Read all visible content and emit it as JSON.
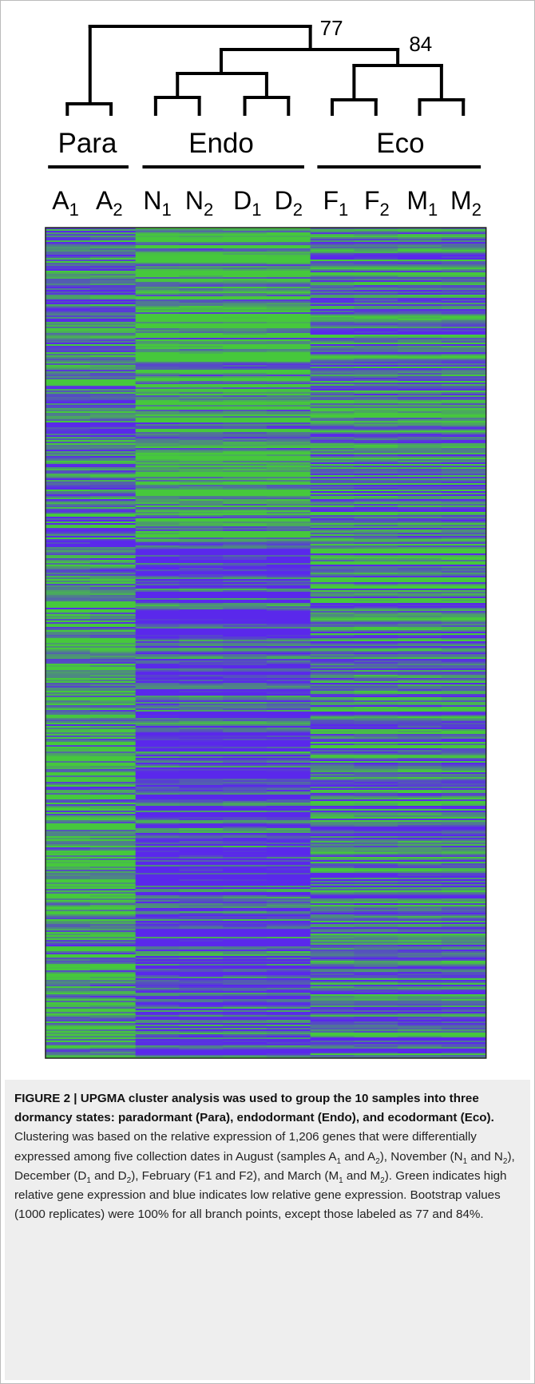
{
  "figure": {
    "bootstrap": [
      "77",
      "84"
    ],
    "groups": [
      "Para",
      "Endo",
      "Eco"
    ],
    "samples": [
      [
        "A",
        "1"
      ],
      [
        "A",
        "2"
      ],
      [
        "N",
        "1"
      ],
      [
        "N",
        "2"
      ],
      [
        "D",
        "1"
      ],
      [
        "D",
        "2"
      ],
      [
        "F",
        "1"
      ],
      [
        "F",
        "2"
      ],
      [
        "M",
        "1"
      ],
      [
        "M",
        "2"
      ]
    ],
    "caption": {
      "bold": "FIGURE 2 | UPGMA cluster analysis was used to group the 10 samples into three dormancy states: paradormant (Para), endodormant (Endo), and ecodormant (Eco).",
      "body": [
        " Clustering was based on the relative expression of 1,206 genes that were differentially expressed among five collection dates in August (samples A",
        "1",
        " and A",
        "2",
        "), November (N",
        "1",
        " and N",
        "2",
        "), December (D",
        "1",
        " and D",
        "2",
        "), February (F1 and F2), and March (M",
        "1",
        " and M",
        "2",
        "). Green indicates high relative gene expression and blue indicates low relative gene expression. Bootstrap values (1000 replicates) were 100% for all branch points, except those labeled as 77 and 84%."
      ]
    }
  }
}
